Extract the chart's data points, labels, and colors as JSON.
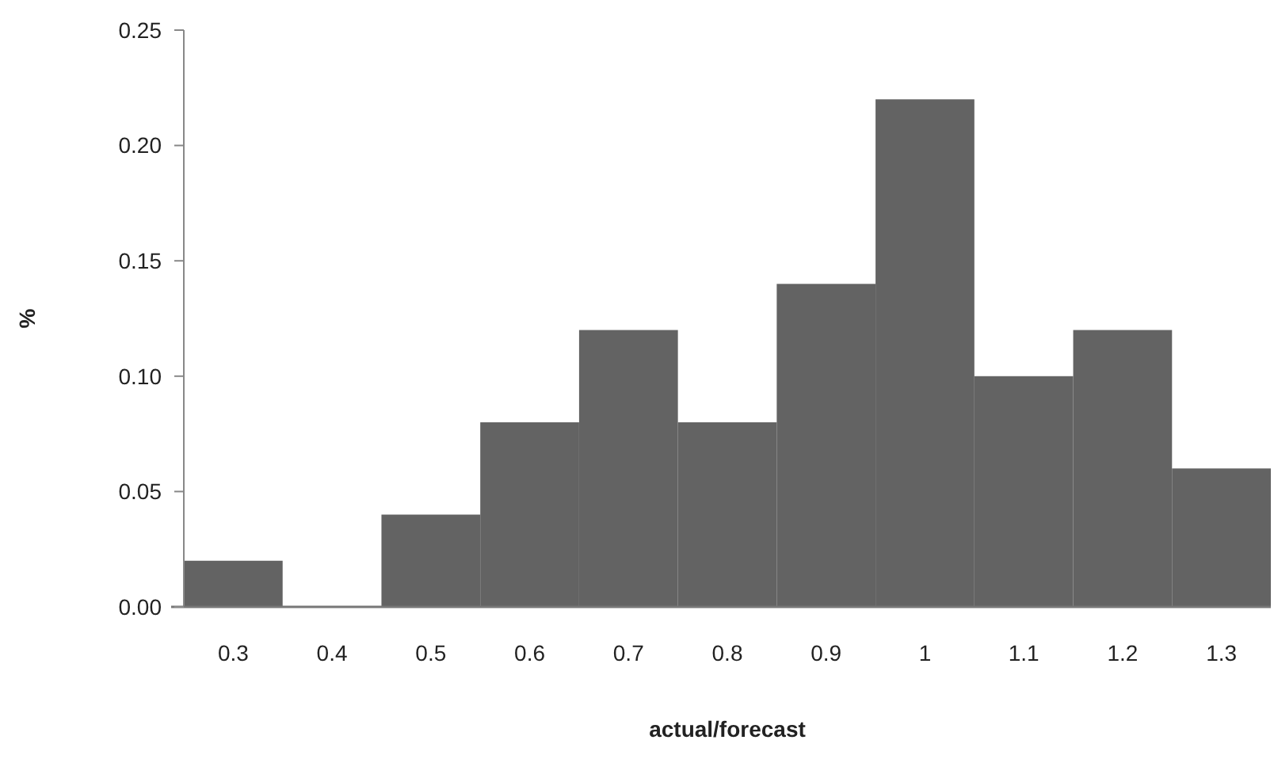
{
  "chart_data": {
    "type": "bar",
    "xlabel": "actual/forecast",
    "ylabel": "%",
    "categories": [
      "0.3",
      "0.4",
      "0.5",
      "0.6",
      "0.7",
      "0.8",
      "0.9",
      "1",
      "1.1",
      "1.2",
      "1.3"
    ],
    "values": [
      0.02,
      0,
      0.04,
      0.08,
      0.12,
      0.08,
      0.14,
      0.22,
      0.1,
      0.12,
      0.06
    ],
    "color": "#636363",
    "ylim": [
      0,
      0.25
    ],
    "yticks": [
      {
        "value": 0,
        "label": "0.00"
      },
      {
        "value": 0.05,
        "label": "0.05"
      },
      {
        "value": 0.1,
        "label": "0.10"
      },
      {
        "value": 0.15,
        "label": "0.15"
      },
      {
        "value": 0.2,
        "label": "0.20"
      },
      {
        "value": 0.25,
        "label": "0.25"
      }
    ],
    "grid": false
  }
}
